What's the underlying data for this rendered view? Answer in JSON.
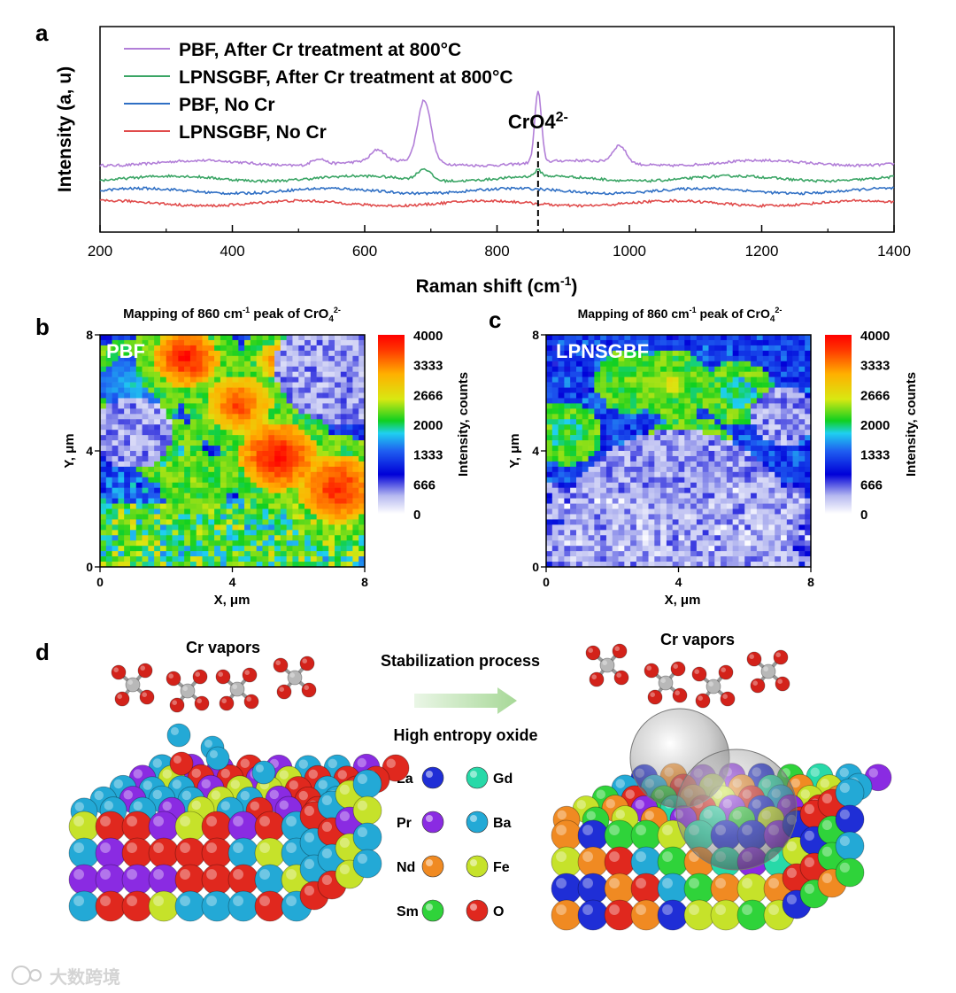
{
  "chart_data": [
    {
      "type": "line",
      "panel": "a",
      "xlabel": "Raman shift (cm",
      "xlabel_sup": "-1",
      "xlabel_close": ")",
      "ylabel": "Intensity (a, u)",
      "xlim": [
        200,
        1400
      ],
      "xticks": [
        "200",
        "400",
        "600",
        "800",
        "1000",
        "1200",
        "1400"
      ],
      "legend_placement": "top-left",
      "annotation": {
        "text": "CrO4",
        "sup": "2-",
        "x": 862
      },
      "series": [
        {
          "name": "PBF, After Cr treatment at 800°C",
          "color": "#b27fd8",
          "baseline": 0.8,
          "peaks": [
            {
              "x": 690,
              "h": 1.0
            },
            {
              "x": 862,
              "h": 1.15
            },
            {
              "x": 985,
              "h": 0.28
            },
            {
              "x": 620,
              "h": 0.18
            },
            {
              "x": 530,
              "h": 0.1
            }
          ]
        },
        {
          "name": "LPNSGBF, After Cr treatment at 800°C",
          "color": "#3aa565",
          "baseline": 0.55,
          "peaks": [
            {
              "x": 690,
              "h": 0.18
            },
            {
              "x": 862,
              "h": 0.1
            }
          ]
        },
        {
          "name": "PBF, No Cr",
          "color": "#2f6fc4",
          "baseline": 0.35,
          "peaks": []
        },
        {
          "name": "LPNSGBF, No Cr",
          "color": "#e04b4b",
          "baseline": 0.15,
          "peaks": []
        }
      ]
    },
    {
      "type": "heatmap",
      "panel": "b",
      "title": "Mapping of 860 cm",
      "title_sup1": "-1",
      "title_mid": " peak of CrO",
      "title_sub": "4",
      "title_sup2": "2-",
      "label": "PBF",
      "xlabel": "X, μm",
      "ylabel": "Y, μm",
      "xlim": [
        0,
        8
      ],
      "ylim": [
        0,
        8
      ],
      "xticks": [
        "0",
        "4",
        "8"
      ],
      "yticks": [
        "0",
        "4",
        "8"
      ],
      "colorbar": {
        "label": "Intensity, counts",
        "ticks": [
          "0",
          "666",
          "1333",
          "2000",
          "2666",
          "3333",
          "4000"
        ],
        "range": [
          0,
          4000
        ]
      },
      "hotspots": [
        {
          "x": 2.6,
          "y": 7.2,
          "r": 1.0,
          "v": 4000
        },
        {
          "x": 5.4,
          "y": 3.8,
          "r": 1.2,
          "v": 4000
        },
        {
          "x": 7.2,
          "y": 2.7,
          "r": 1.2,
          "v": 3900
        },
        {
          "x": 4.2,
          "y": 5.6,
          "r": 1.0,
          "v": 3700
        },
        {
          "x": 5.5,
          "y": 7.1,
          "r": 0.7,
          "v": 3600
        },
        {
          "x": 1.0,
          "y": 6.3,
          "r": 1.0,
          "v": 1800
        },
        {
          "x": 2.9,
          "y": 2.9,
          "r": 0.5,
          "v": 2600
        },
        {
          "x": 2.0,
          "y": 4.0,
          "r": 0.5,
          "v": 2400
        }
      ],
      "low_regions": [
        {
          "x": 7.3,
          "y": 6.9,
          "r": 2.0
        },
        {
          "x": 1.0,
          "y": 4.6,
          "r": 1.2
        }
      ]
    },
    {
      "type": "heatmap",
      "panel": "c",
      "title": "Mapping of 860 cm",
      "title_sup1": "-1",
      "title_mid": " peak of CrO",
      "title_sub": "4",
      "title_sup2": "2-",
      "label": "LPNSGBF",
      "xlabel": "X, μm",
      "ylabel": "Y, μm",
      "xlim": [
        0,
        8
      ],
      "ylim": [
        0,
        8
      ],
      "xticks": [
        "0",
        "4",
        "8"
      ],
      "yticks": [
        "0",
        "4",
        "8"
      ],
      "colorbar": {
        "label": "Intensity, counts",
        "ticks": [
          "0",
          "666",
          "1333",
          "2000",
          "2666",
          "3333",
          "4000"
        ],
        "range": [
          0,
          4000
        ]
      },
      "hotspots": [
        {
          "x": 4.3,
          "y": 3.7,
          "r": 0.9,
          "v": 3800
        },
        {
          "x": 3.8,
          "y": 6.3,
          "r": 0.6,
          "v": 2800
        },
        {
          "x": 2.6,
          "y": 6.4,
          "r": 0.5,
          "v": 2500
        },
        {
          "x": 5.8,
          "y": 6.0,
          "r": 0.5,
          "v": 2200
        },
        {
          "x": 0.6,
          "y": 4.6,
          "r": 0.5,
          "v": 2300
        }
      ],
      "low_regions": [
        {
          "x": 4.0,
          "y": 1.2,
          "r": 3.5
        },
        {
          "x": 7.2,
          "y": 5.2,
          "r": 1.0
        }
      ]
    }
  ],
  "schematic": {
    "panel": "d",
    "left_label": "Cr vapors",
    "right_label": "Cr vapors",
    "process_label": "Stabilization process",
    "hea_label": "High entropy oxide",
    "legend": [
      {
        "label": "La",
        "color": "#1f2ed6"
      },
      {
        "label": "Gd",
        "color": "#27d9a8"
      },
      {
        "label": "Pr",
        "color": "#8a2be2"
      },
      {
        "label": "Ba",
        "color": "#23a9d6"
      },
      {
        "label": "Nd",
        "color": "#f08a22"
      },
      {
        "label": "Fe",
        "color": "#c6e22a"
      },
      {
        "label": "Sm",
        "color": "#2fd33a"
      },
      {
        "label": "O",
        "color": "#e0281e"
      }
    ]
  },
  "watermark": "大数跨境"
}
